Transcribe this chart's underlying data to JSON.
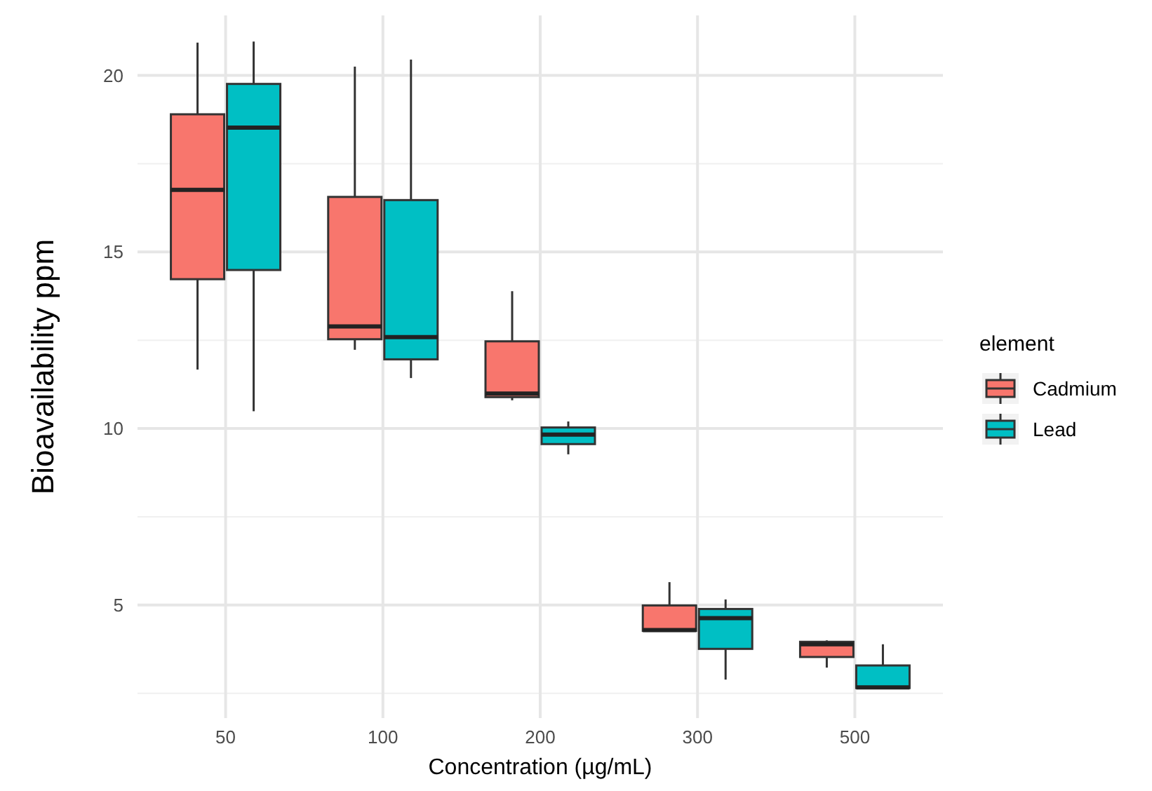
{
  "chart_data": {
    "type": "box",
    "xlabel": "Concentration (µg/mL)",
    "ylabel": "Bioavailability ppm",
    "legend_title": "element",
    "legend": "right",
    "grid": true,
    "categories": [
      "50",
      "100",
      "200",
      "300",
      "500"
    ],
    "ylim": [
      1.8,
      21.7
    ],
    "yticks": [
      5,
      10,
      15,
      20
    ],
    "series": [
      {
        "name": "Cadmium",
        "color": "#f8766d",
        "boxes": [
          {
            "low": 11.67,
            "q1": 14.23,
            "median": 16.76,
            "q3": 18.9,
            "high": 20.93
          },
          {
            "low": 12.23,
            "q1": 12.53,
            "median": 12.89,
            "q3": 16.56,
            "high": 20.25
          },
          {
            "low": 10.8,
            "q1": 10.89,
            "median": 10.99,
            "q3": 12.47,
            "high": 13.89
          },
          {
            "low": 4.25,
            "q1": 4.27,
            "median": 4.29,
            "q3": 4.99,
            "high": 5.65
          },
          {
            "low": 3.23,
            "q1": 3.53,
            "median": 3.89,
            "q3": 3.96,
            "high": 4.0
          }
        ]
      },
      {
        "name": "Lead",
        "color": "#00bfc4",
        "boxes": [
          {
            "low": 10.49,
            "q1": 14.49,
            "median": 18.52,
            "q3": 19.76,
            "high": 20.96
          },
          {
            "low": 11.43,
            "q1": 11.96,
            "median": 12.59,
            "q3": 16.47,
            "high": 20.45
          },
          {
            "low": 9.27,
            "q1": 9.56,
            "median": 9.83,
            "q3": 10.03,
            "high": 10.2
          },
          {
            "low": 2.89,
            "q1": 3.76,
            "median": 4.63,
            "q3": 4.89,
            "high": 5.16
          },
          {
            "low": 2.65,
            "q1": 2.65,
            "median": 2.67,
            "q3": 3.29,
            "high": 3.89
          }
        ]
      }
    ]
  }
}
